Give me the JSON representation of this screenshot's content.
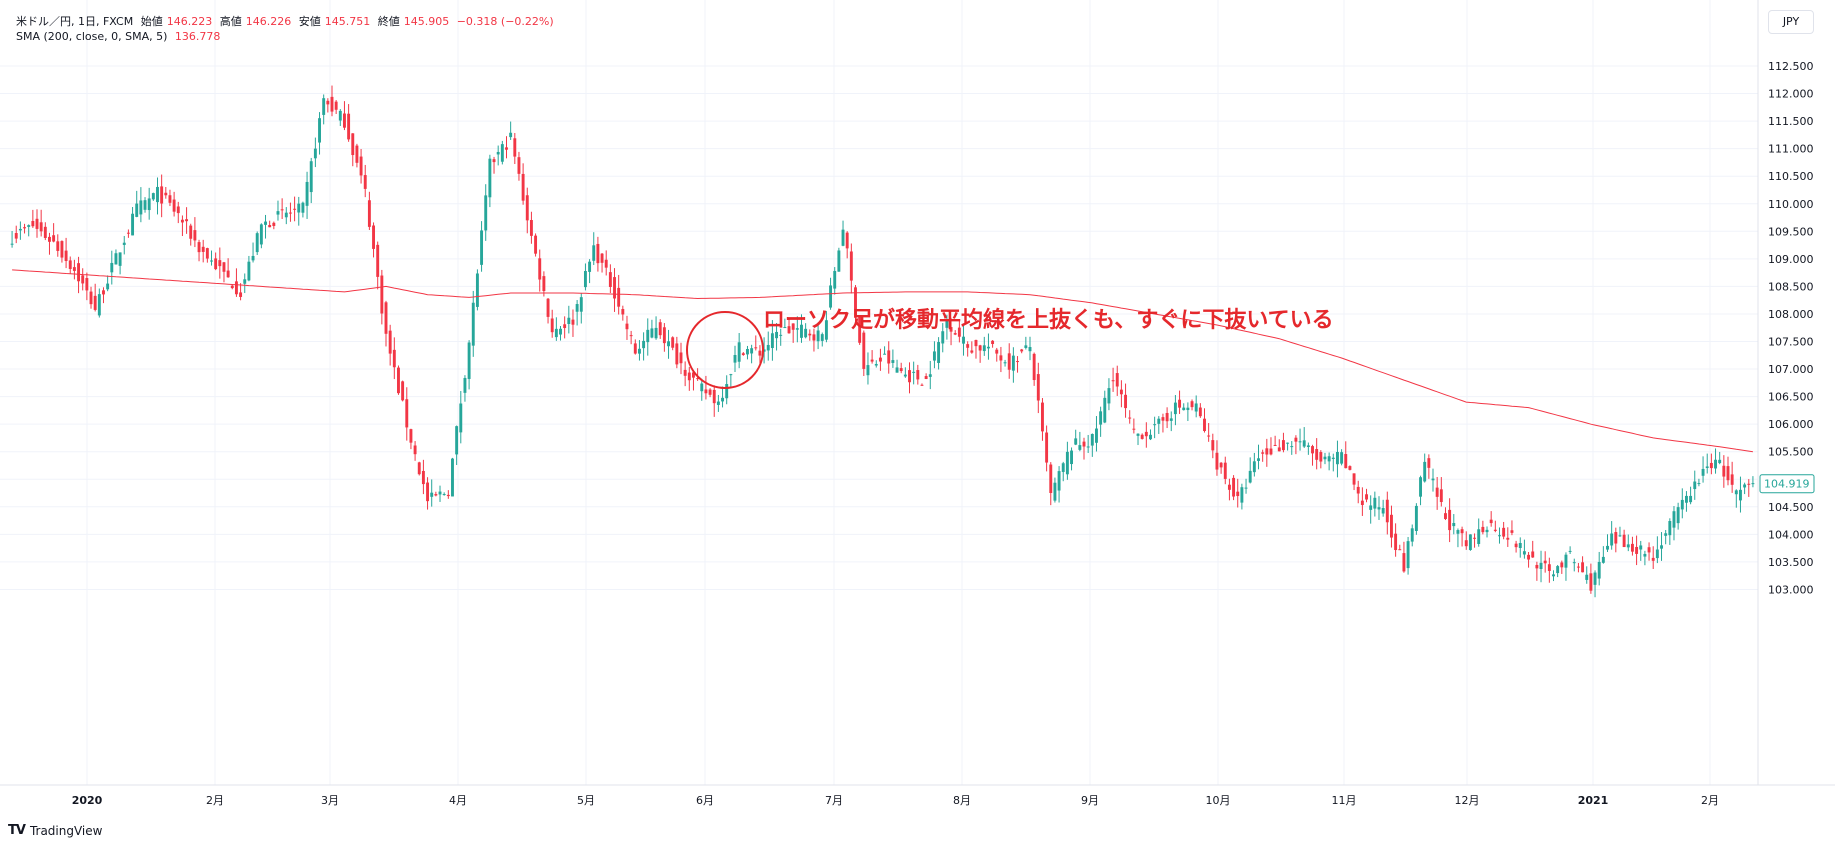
{
  "header": {
    "symbol": "米ドル／円, 1日, FXCM",
    "open_label": "始値",
    "open": "146.223",
    "high_label": "高値",
    "high": "146.226",
    "low_label": "安値",
    "low": "145.751",
    "close_label": "終値",
    "close": "145.905",
    "change": "−0.318 (−0.22%)",
    "indicator": "SMA (200, close, 0, SMA, 5)",
    "indicator_value": "136.778"
  },
  "currency_button": "JPY",
  "annotation": "ローソク足が移動平均線を上抜くも、すぐに下抜いている",
  "logo_text": "TradingView",
  "colors": {
    "up": "#26a69a",
    "down": "#f23645",
    "sma": "#f23645",
    "annotation": "#e5282c",
    "grid": "#f0f3fa"
  },
  "chart_data": {
    "type": "candlestick",
    "y_ticks": [
      "112.500",
      "112.000",
      "111.500",
      "111.000",
      "110.500",
      "110.000",
      "109.500",
      "109.000",
      "108.500",
      "108.000",
      "107.500",
      "107.000",
      "106.500",
      "106.000",
      "105.500",
      "105.000",
      "104.500",
      "104.000",
      "103.500",
      "103.000"
    ],
    "ylim": [
      102.8,
      112.8
    ],
    "x_ticks": [
      "2020",
      "2月",
      "3月",
      "4月",
      "5月",
      "6月",
      "7月",
      "8月",
      "9月",
      "10月",
      "11月",
      "12月",
      "2021",
      "2月"
    ],
    "last_price": "104.919",
    "close_path": [
      [
        0,
        109.4
      ],
      [
        5,
        109.6
      ],
      [
        10,
        109.3
      ],
      [
        15,
        108.8
      ],
      [
        20,
        108.1
      ],
      [
        25,
        109.0
      ],
      [
        30,
        109.9
      ],
      [
        35,
        110.2
      ],
      [
        40,
        109.8
      ],
      [
        45,
        109.2
      ],
      [
        50,
        108.8
      ],
      [
        55,
        108.4
      ],
      [
        60,
        109.6
      ],
      [
        65,
        109.8
      ],
      [
        70,
        109.9
      ],
      [
        75,
        111.9
      ],
      [
        80,
        111.5
      ],
      [
        85,
        110.2
      ],
      [
        90,
        107.6
      ],
      [
        95,
        106.0
      ],
      [
        100,
        104.6
      ],
      [
        105,
        104.8
      ],
      [
        110,
        107.5
      ],
      [
        115,
        110.7
      ],
      [
        120,
        111.2
      ],
      [
        125,
        109.4
      ],
      [
        130,
        107.7
      ],
      [
        135,
        107.9
      ],
      [
        140,
        109.2
      ],
      [
        145,
        108.4
      ],
      [
        150,
        107.3
      ],
      [
        155,
        107.8
      ],
      [
        160,
        107.2
      ],
      [
        165,
        106.7
      ],
      [
        170,
        106.4
      ],
      [
        175,
        107.4
      ],
      [
        180,
        107.3
      ],
      [
        185,
        107.7
      ],
      [
        190,
        107.7
      ],
      [
        195,
        107.6
      ],
      [
        200,
        109.6
      ],
      [
        205,
        107.0
      ],
      [
        210,
        107.2
      ],
      [
        215,
        106.9
      ],
      [
        220,
        106.8
      ],
      [
        225,
        107.9
      ],
      [
        230,
        107.4
      ],
      [
        235,
        107.4
      ],
      [
        240,
        107.1
      ],
      [
        245,
        107.4
      ],
      [
        250,
        104.7
      ],
      [
        255,
        105.6
      ],
      [
        260,
        105.7
      ],
      [
        265,
        106.9
      ],
      [
        270,
        105.8
      ],
      [
        275,
        105.9
      ],
      [
        280,
        106.3
      ],
      [
        285,
        106.3
      ],
      [
        290,
        105.3
      ],
      [
        295,
        104.6
      ],
      [
        300,
        105.4
      ],
      [
        305,
        105.6
      ],
      [
        310,
        105.7
      ],
      [
        315,
        105.3
      ],
      [
        320,
        105.4
      ],
      [
        325,
        104.6
      ],
      [
        330,
        104.5
      ],
      [
        335,
        103.4
      ],
      [
        340,
        105.3
      ],
      [
        345,
        104.3
      ],
      [
        350,
        103.8
      ],
      [
        355,
        104.2
      ],
      [
        360,
        104.0
      ],
      [
        365,
        103.6
      ],
      [
        370,
        103.3
      ],
      [
        375,
        103.6
      ],
      [
        380,
        103.1
      ],
      [
        385,
        103.9
      ],
      [
        390,
        103.8
      ],
      [
        395,
        103.6
      ],
      [
        400,
        104.3
      ],
      [
        405,
        104.9
      ],
      [
        410,
        105.4
      ],
      [
        415,
        104.7
      ],
      [
        419,
        104.92
      ]
    ],
    "sma_200": [
      [
        0,
        108.8
      ],
      [
        20,
        108.7
      ],
      [
        40,
        108.6
      ],
      [
        60,
        108.5
      ],
      [
        80,
        108.4
      ],
      [
        90,
        108.5
      ],
      [
        100,
        108.35
      ],
      [
        110,
        108.3
      ],
      [
        120,
        108.38
      ],
      [
        135,
        108.38
      ],
      [
        150,
        108.35
      ],
      [
        165,
        108.28
      ],
      [
        180,
        108.3
      ],
      [
        200,
        108.38
      ],
      [
        215,
        108.4
      ],
      [
        230,
        108.4
      ],
      [
        245,
        108.35
      ],
      [
        260,
        108.2
      ],
      [
        275,
        108.0
      ],
      [
        290,
        107.8
      ],
      [
        305,
        107.55
      ],
      [
        320,
        107.2
      ],
      [
        335,
        106.8
      ],
      [
        350,
        106.4
      ],
      [
        365,
        106.3
      ],
      [
        380,
        106.0
      ],
      [
        395,
        105.75
      ],
      [
        410,
        105.6
      ],
      [
        419,
        105.5
      ]
    ],
    "sample_candles_count": 420
  }
}
